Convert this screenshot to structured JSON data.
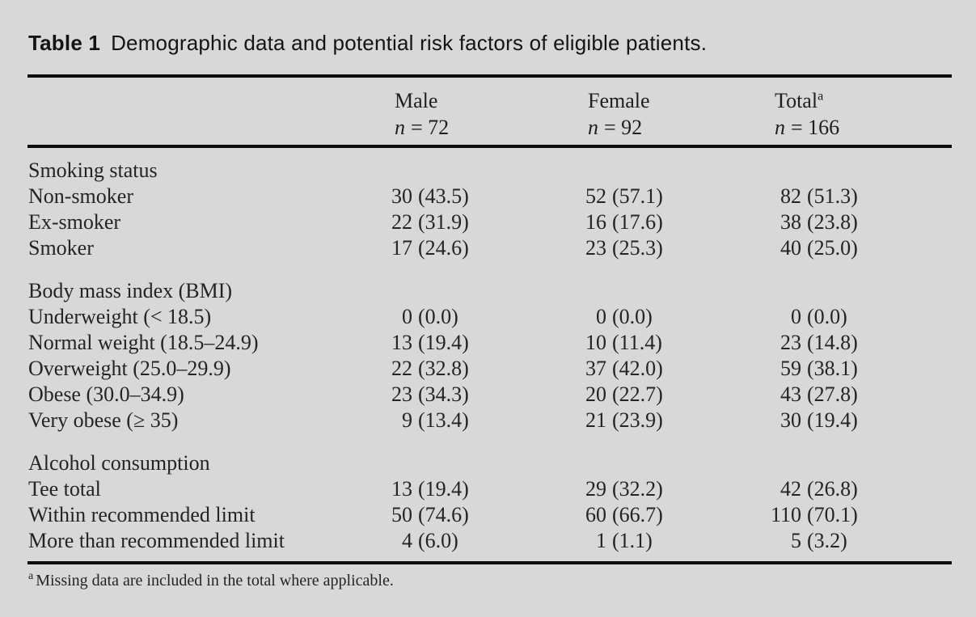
{
  "page": {
    "background": "#d8d8d8",
    "rule_color": "#0c0c0c",
    "text_color": "#242424"
  },
  "title": {
    "label": "Table 1",
    "text": "Demographic data and potential risk factors of eligible patients."
  },
  "table": {
    "columns": [
      {
        "label": "Male",
        "sup": "",
        "n_symbol": "n",
        "n_rest": "= 72"
      },
      {
        "label": "Female",
        "sup": "",
        "n_symbol": "n",
        "n_rest": "= 92"
      },
      {
        "label": "Total",
        "sup": "a",
        "n_symbol": "n",
        "n_rest": "= 166"
      }
    ],
    "sections": [
      {
        "header": "Smoking status",
        "rows": [
          {
            "label": "Non-smoker",
            "male": {
              "count": "30",
              "pct": "(43.5)"
            },
            "female": {
              "count": "52",
              "pct": "(57.1)"
            },
            "total": {
              "count": "82",
              "pct": "(51.3)"
            }
          },
          {
            "label": "Ex-smoker",
            "male": {
              "count": "22",
              "pct": "(31.9)"
            },
            "female": {
              "count": "16",
              "pct": "(17.6)"
            },
            "total": {
              "count": "38",
              "pct": "(23.8)"
            }
          },
          {
            "label": "Smoker",
            "male": {
              "count": "17",
              "pct": "(24.6)"
            },
            "female": {
              "count": "23",
              "pct": "(25.3)"
            },
            "total": {
              "count": "40",
              "pct": "(25.0)"
            }
          }
        ]
      },
      {
        "header": "Body mass index (BMI)",
        "rows": [
          {
            "label": "Underweight (< 18.5)",
            "male": {
              "count": "0",
              "pct": "(0.0)"
            },
            "female": {
              "count": "0",
              "pct": "(0.0)"
            },
            "total": {
              "count": "0",
              "pct": "(0.0)"
            }
          },
          {
            "label": "Normal weight (18.5–24.9)",
            "male": {
              "count": "13",
              "pct": "(19.4)"
            },
            "female": {
              "count": "10",
              "pct": "(11.4)"
            },
            "total": {
              "count": "23",
              "pct": "(14.8)"
            }
          },
          {
            "label": "Overweight (25.0–29.9)",
            "male": {
              "count": "22",
              "pct": "(32.8)"
            },
            "female": {
              "count": "37",
              "pct": "(42.0)"
            },
            "total": {
              "count": "59",
              "pct": "(38.1)"
            }
          },
          {
            "label": "Obese (30.0–34.9)",
            "male": {
              "count": "23",
              "pct": "(34.3)"
            },
            "female": {
              "count": "20",
              "pct": "(22.7)"
            },
            "total": {
              "count": "43",
              "pct": "(27.8)"
            }
          },
          {
            "label": "Very obese (≥ 35)",
            "male": {
              "count": "9",
              "pct": "(13.4)"
            },
            "female": {
              "count": "21",
              "pct": "(23.9)"
            },
            "total": {
              "count": "30",
              "pct": "(19.4)"
            }
          }
        ]
      },
      {
        "header": "Alcohol consumption",
        "rows": [
          {
            "label": "Tee total",
            "male": {
              "count": "13",
              "pct": "(19.4)"
            },
            "female": {
              "count": "29",
              "pct": "(32.2)"
            },
            "total": {
              "count": "42",
              "pct": "(26.8)"
            }
          },
          {
            "label": "Within recommended limit",
            "male": {
              "count": "50",
              "pct": "(74.6)"
            },
            "female": {
              "count": "60",
              "pct": "(66.7)"
            },
            "total": {
              "count": "110",
              "pct": "(70.1)"
            }
          },
          {
            "label": "More than recommended limit",
            "male": {
              "count": "4",
              "pct": "(6.0)"
            },
            "female": {
              "count": "1",
              "pct": "(1.1)"
            },
            "total": {
              "count": "5",
              "pct": "(3.2)"
            }
          }
        ]
      }
    ]
  },
  "footnote": {
    "marker": "a",
    "text": "Missing data are included in the total where applicable."
  }
}
